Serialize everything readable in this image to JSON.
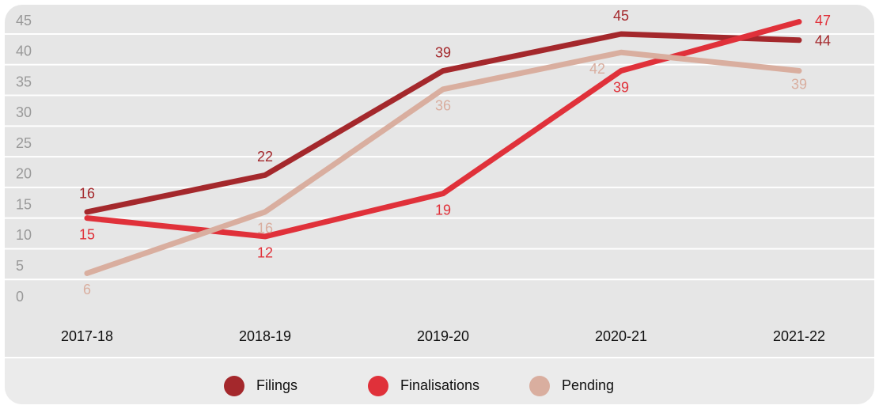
{
  "chart_data": {
    "type": "line",
    "categories": [
      "2017-18",
      "2018-19",
      "2019-20",
      "2020-21",
      "2021-22"
    ],
    "series": [
      {
        "name": "Filings",
        "color": "#a4282c",
        "values": [
          16,
          22,
          39,
          45,
          44
        ]
      },
      {
        "name": "Finalisations",
        "color": "#e0313a",
        "values": [
          15,
          12,
          19,
          39,
          47
        ]
      },
      {
        "name": "Pending",
        "color": "#d9ae9f",
        "values": [
          6,
          16,
          36,
          42,
          39
        ]
      }
    ],
    "ylim": [
      0,
      45
    ],
    "yticks": [
      0,
      5,
      10,
      15,
      20,
      25,
      30,
      35,
      40,
      45
    ],
    "grid": true,
    "legend": "bottom"
  }
}
